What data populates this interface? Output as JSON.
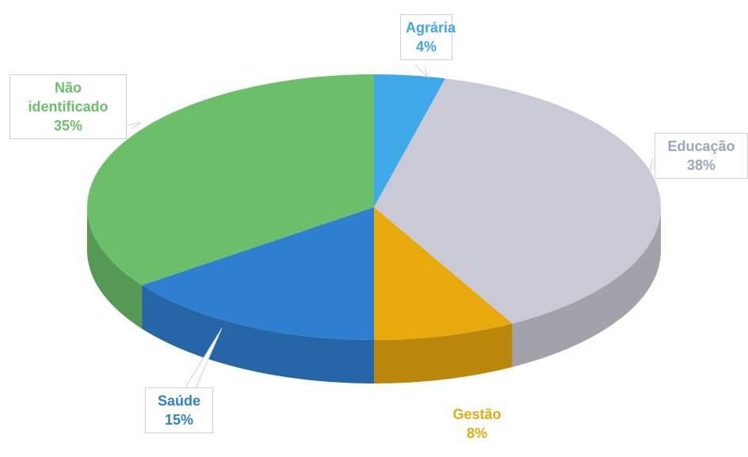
{
  "chart_data": {
    "type": "pie",
    "categories": [
      "Agrária",
      "Educação",
      "Gestão",
      "Saúde",
      "Não identificado"
    ],
    "values": [
      4,
      38,
      8,
      15,
      35
    ],
    "value_labels": [
      "4%",
      "38%",
      "8%",
      "15%",
      "35%"
    ],
    "colors": [
      "#3fa9e8",
      "#cacad6",
      "#e8a90c",
      "#2f7fd0",
      "#6cbf6a"
    ]
  }
}
